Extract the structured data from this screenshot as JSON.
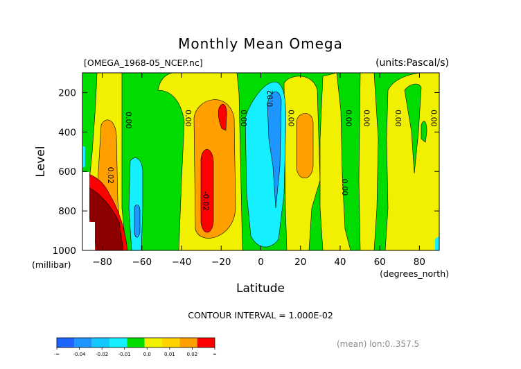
{
  "chart_data": {
    "type": "heatmap",
    "title": "Monthly Mean Omega",
    "subtitle_left": "[OMEGA_1968-05_NCEP.nc]",
    "subtitle_right": "(units:Pascal/s)",
    "xlabel": "Latitude",
    "xunit": "(degrees_north)",
    "ylabel": "Level",
    "yunit": "(millibar)",
    "xlim": [
      -90,
      90
    ],
    "ylim": [
      1000,
      100
    ],
    "x_ticks": [
      -80,
      -60,
      -40,
      -20,
      0,
      20,
      40,
      60,
      80
    ],
    "y_ticks": [
      200,
      400,
      600,
      800,
      1000
    ],
    "contour_interval_text": "CONTOUR INTERVAL = 1.000E-02",
    "footnote": "(mean) lon:0..357.5",
    "legend": {
      "colors": [
        "#1e64ff",
        "#1e96ff",
        "#14c8ff",
        "#14f0ff",
        "#00dc00",
        "#f0f000",
        "#ffd200",
        "#ffa000",
        "#ff0000"
      ],
      "labels": [
        "-∞",
        "-0.04",
        "-0.02",
        "-0.01",
        "0.0",
        "0.01",
        "0.02",
        "∞"
      ]
    },
    "contour_labels": [
      {
        "text": "0.02",
        "lat": -77,
        "lev": 620,
        "rotate": 90
      },
      {
        "text": "0.00",
        "lat": -68,
        "lev": 340,
        "rotate": 90
      },
      {
        "text": "0.00",
        "lat": -38,
        "lev": 330,
        "rotate": 90
      },
      {
        "text": "0.00",
        "lat": -10,
        "lev": 330,
        "rotate": 90
      },
      {
        "text": "0.02",
        "lat": 6,
        "lev": 230,
        "rotate": -90
      },
      {
        "text": "0.00",
        "lat": 14,
        "lev": 330,
        "rotate": 90
      },
      {
        "text": "0.00",
        "lat": 43,
        "lev": 330,
        "rotate": 90
      },
      {
        "text": "0.00",
        "lat": 52,
        "lev": 330,
        "rotate": 90
      },
      {
        "text": "0.00",
        "lat": 68,
        "lev": 330,
        "rotate": 90
      },
      {
        "text": "0.00",
        "lat": 86,
        "lev": 330,
        "rotate": 90
      },
      {
        "text": "0.00",
        "lat": 41,
        "lev": 680,
        "rotate": 90
      },
      {
        "text": "-0.02",
        "lat": -29,
        "lev": 750,
        "rotate": 90
      }
    ]
  }
}
